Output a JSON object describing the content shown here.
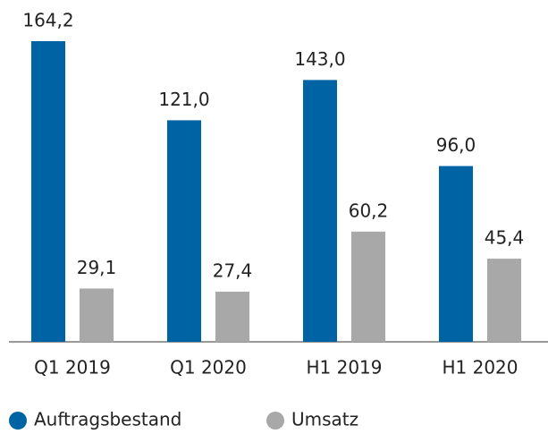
{
  "chart_data": {
    "type": "bar",
    "categories": [
      "Q1 2019",
      "Q1 2020",
      "H1 2019",
      "H1 2020"
    ],
    "series": [
      {
        "name": "Auftragsbestand",
        "color": "#0063a3",
        "values": [
          164.2,
          121.0,
          143.0,
          96.0
        ],
        "value_labels": [
          "164,2",
          "121,0",
          "143,0",
          "96,0"
        ]
      },
      {
        "name": "Umsatz",
        "color": "#a8a8a8",
        "values": [
          29.1,
          27.4,
          60.2,
          45.4
        ],
        "value_labels": [
          "29,1",
          "27,4",
          "60,2",
          "45,4"
        ]
      }
    ],
    "legend": "bottom"
  }
}
